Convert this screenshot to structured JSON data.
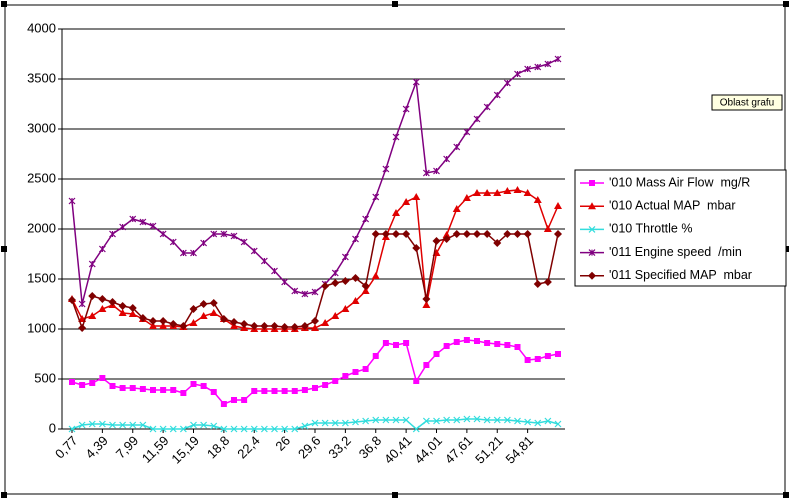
{
  "chart_data": {
    "type": "line",
    "tooltip": "Oblast grafu",
    "categories": [
      "0,77",
      null,
      null,
      "4,39",
      null,
      null,
      "7,99",
      null,
      null,
      "11,59",
      null,
      null,
      "15,19",
      null,
      null,
      "18,8",
      null,
      null,
      "22,4",
      null,
      null,
      "26",
      null,
      null,
      "29,6",
      null,
      null,
      "33,2",
      null,
      null,
      "36,8",
      null,
      null,
      "40,41",
      null,
      null,
      "44,01",
      null,
      null,
      "47,61",
      null,
      null,
      "51,21",
      null,
      null,
      "54,81",
      null,
      null,
      null
    ],
    "ylim": [
      0,
      4000
    ],
    "yticks": [
      0,
      500,
      1000,
      1500,
      2000,
      2500,
      3000,
      3500,
      4000
    ],
    "grid": true,
    "legend": "right",
    "series": [
      {
        "name": "'010 Mass Air Flow  mg/R",
        "color": "#ff00ff",
        "marker": "square",
        "values": [
          470,
          440,
          460,
          510,
          430,
          410,
          410,
          400,
          390,
          390,
          390,
          360,
          450,
          430,
          370,
          250,
          290,
          290,
          380,
          380,
          380,
          380,
          380,
          390,
          410,
          440,
          480,
          530,
          570,
          600,
          730,
          860,
          840,
          860,
          480,
          640,
          750,
          830,
          870,
          890,
          880,
          860,
          850,
          840,
          820,
          690,
          700,
          730,
          750
        ]
      },
      {
        "name": "'010 Actual MAP  mbar",
        "color": "#e00000",
        "marker": "triangle",
        "values": [
          1300,
          1100,
          1130,
          1200,
          1240,
          1160,
          1150,
          1100,
          1030,
          1030,
          1030,
          1020,
          1060,
          1130,
          1160,
          1100,
          1030,
          1010,
          1000,
          1000,
          1000,
          1000,
          1000,
          1010,
          1010,
          1060,
          1130,
          1200,
          1280,
          1380,
          1530,
          1920,
          2160,
          2270,
          2320,
          1240,
          1760,
          1940,
          2200,
          2310,
          2360,
          2360,
          2360,
          2380,
          2390,
          2360,
          2290,
          2000,
          2230
        ]
      },
      {
        "name": "'010 Throttle %",
        "color": "#33dddd",
        "marker": "x",
        "values": [
          0,
          40,
          50,
          50,
          40,
          40,
          40,
          40,
          0,
          0,
          0,
          0,
          40,
          40,
          30,
          0,
          0,
          0,
          0,
          0,
          0,
          0,
          0,
          30,
          60,
          60,
          60,
          60,
          70,
          80,
          90,
          90,
          90,
          90,
          0,
          80,
          80,
          90,
          90,
          100,
          100,
          90,
          90,
          90,
          80,
          70,
          60,
          80,
          50
        ]
      },
      {
        "name": "'011 Engine speed  /min",
        "color": "#800080",
        "marker": "star",
        "values": [
          2280,
          1250,
          1650,
          1800,
          1950,
          2020,
          2100,
          2070,
          2030,
          1950,
          1870,
          1760,
          1760,
          1860,
          1950,
          1950,
          1930,
          1870,
          1780,
          1680,
          1580,
          1470,
          1380,
          1350,
          1370,
          1450,
          1560,
          1720,
          1900,
          2100,
          2320,
          2600,
          2920,
          3200,
          3470,
          2560,
          2580,
          2700,
          2820,
          2970,
          3100,
          3220,
          3340,
          3460,
          3550,
          3600,
          3620,
          3650,
          3700
        ]
      },
      {
        "name": "'011 Specified MAP  mbar",
        "color": "#800000",
        "marker": "diamond",
        "values": [
          1290,
          1010,
          1330,
          1300,
          1270,
          1230,
          1210,
          1110,
          1080,
          1080,
          1050,
          1030,
          1200,
          1250,
          1260,
          1100,
          1070,
          1050,
          1030,
          1030,
          1030,
          1020,
          1020,
          1030,
          1080,
          1430,
          1460,
          1480,
          1510,
          1430,
          1950,
          1950,
          1950,
          1950,
          1810,
          1300,
          1880,
          1900,
          1950,
          1950,
          1950,
          1950,
          1860,
          1950,
          1950,
          1950,
          1450,
          1470,
          1950
        ]
      }
    ]
  }
}
